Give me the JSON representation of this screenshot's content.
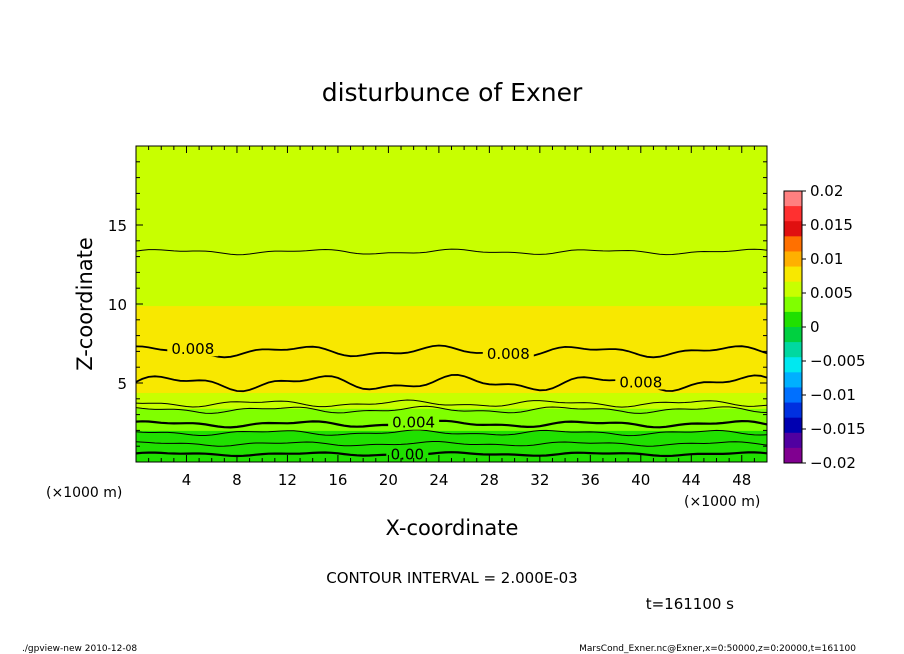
{
  "chart_data": {
    "type": "heatmap",
    "title": "disturbunce of Exner",
    "xlabel": "X-coordinate",
    "ylabel": "Z-coordinate",
    "x_unit": "(×1000 m)",
    "x_unit_right": "(×1000 m)",
    "xlim": [
      0,
      50
    ],
    "ylim": [
      0,
      20
    ],
    "x_ticks": [
      4,
      8,
      12,
      16,
      20,
      24,
      28,
      32,
      36,
      40,
      44,
      48
    ],
    "y_ticks": [
      5,
      10,
      15
    ],
    "colorbar": {
      "ticks": [
        "0.02",
        "0.015",
        "0.01",
        "0.005",
        "0",
        "−0.005",
        "−0.01",
        "−0.015",
        "−0.02"
      ],
      "range": [
        -0.02,
        0.02
      ],
      "colors": [
        "#ff8080",
        "#ff3030",
        "#e01010",
        "#ff7000",
        "#ffb000",
        "#f8e800",
        "#c8ff00",
        "#80ff00",
        "#20e000",
        "#00d040",
        "#00d8a0",
        "#00e8f0",
        "#00b0ff",
        "#0070ff",
        "#0030e0",
        "#0000b0",
        "#5000a0",
        "#800090"
      ]
    },
    "vertical_profile": [
      {
        "z": 0.0,
        "value": 0.0004
      },
      {
        "z": 1.0,
        "value": 0.0012
      },
      {
        "z": 2.0,
        "value": 0.0022
      },
      {
        "z": 3.0,
        "value": 0.0036
      },
      {
        "z": 4.0,
        "value": 0.0058
      },
      {
        "z": 5.0,
        "value": 0.0082
      },
      {
        "z": 6.5,
        "value": 0.0086
      },
      {
        "z": 8.0,
        "value": 0.0076
      },
      {
        "z": 10.0,
        "value": 0.0066
      },
      {
        "z": 13.0,
        "value": 0.006
      },
      {
        "z": 16.0,
        "value": 0.0052
      },
      {
        "z": 20.0,
        "value": 0.0046
      }
    ],
    "contour_labels": [
      "0.008",
      "0.008",
      "0.008",
      "0.004",
      "0.00"
    ],
    "contour_interval_text": "CONTOUR INTERVAL = 2.000E-03",
    "time_text": "t=161100 s"
  },
  "footer": {
    "left": "./gpview-new  2010-12-08",
    "right": "MarsCond_Exner.nc@Exner,x=0:50000,z=0:20000,t=161100"
  }
}
